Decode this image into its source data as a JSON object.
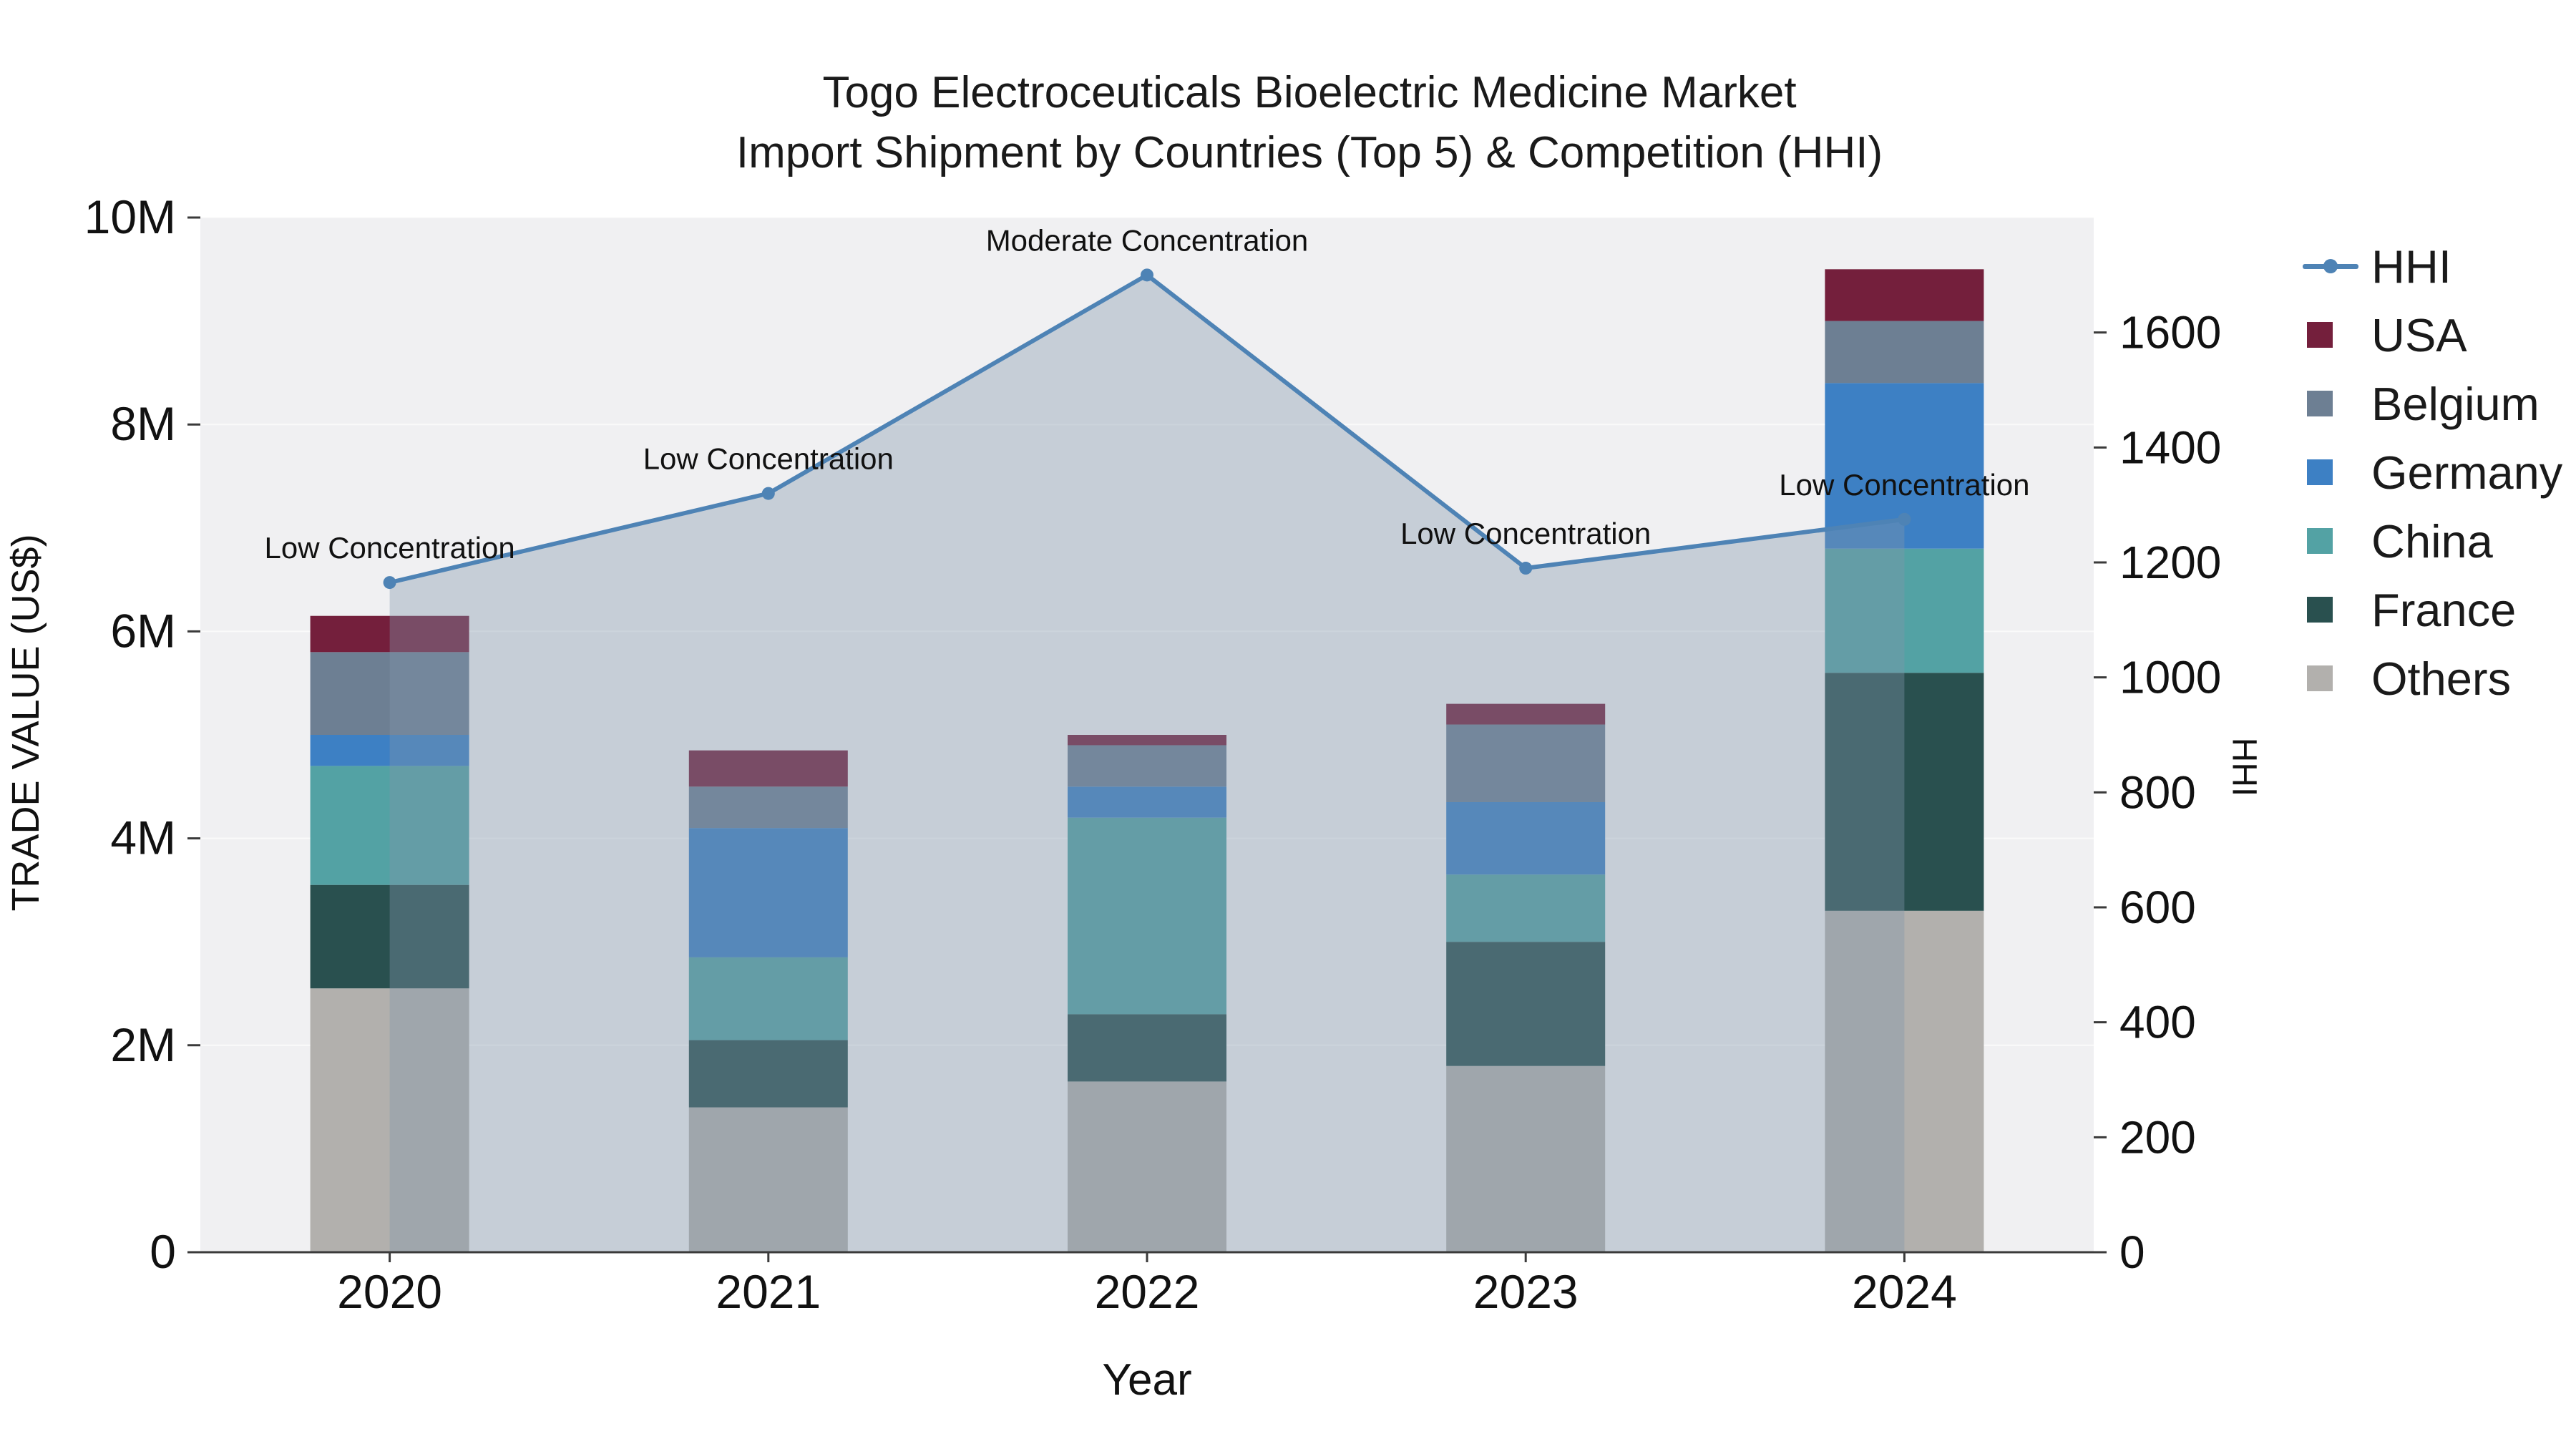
{
  "chart_data": {
    "type": "bar",
    "stacked": true,
    "title": "Togo Electroceuticals Bioelectric Medicine Market",
    "subtitle": "Import Shipment by Countries (Top 5) & Competition (HHI)",
    "xlabel": "Year",
    "ylabel_left": "TRADE VALUE (US$)",
    "ylabel_right": "HHI",
    "plot_bg": "#f0f0f2",
    "grid_color": "#fafafa",
    "axis_color": "#3a3a3a",
    "categories": [
      "2020",
      "2021",
      "2022",
      "2023",
      "2024"
    ],
    "axes": {
      "left": {
        "min": 0,
        "max": 10000000,
        "tick_values": [
          0,
          2000000,
          4000000,
          6000000,
          8000000,
          10000000
        ],
        "tick_labels": [
          "0",
          "2M",
          "4M",
          "6M",
          "8M",
          "10M"
        ]
      },
      "right": {
        "min": 0,
        "max": 1800,
        "tick_values": [
          0,
          200,
          400,
          600,
          800,
          1000,
          1200,
          1400,
          1600
        ],
        "tick_labels": [
          "0",
          "200",
          "400",
          "600",
          "800",
          "1000",
          "1200",
          "1400",
          "1600"
        ]
      }
    },
    "series": [
      {
        "name": "Others",
        "color": "#b2b0ad",
        "values": [
          2550000,
          1400000,
          1650000,
          1800000,
          3300000
        ]
      },
      {
        "name": "France",
        "color": "#29504f",
        "values": [
          1000000,
          650000,
          650000,
          1200000,
          2300000
        ]
      },
      {
        "name": "China",
        "color": "#53a2a4",
        "values": [
          1150000,
          800000,
          1900000,
          650000,
          1200000
        ]
      },
      {
        "name": "Germany",
        "color": "#3d80c4",
        "values": [
          300000,
          1250000,
          300000,
          700000,
          1600000
        ]
      },
      {
        "name": "Belgium",
        "color": "#6d7f93",
        "values": [
          800000,
          400000,
          400000,
          750000,
          600000
        ]
      },
      {
        "name": "USA",
        "color": "#741f3c",
        "values": [
          350000,
          350000,
          100000,
          200000,
          500000
        ]
      }
    ],
    "hhi": {
      "name": "HHI",
      "color": "#4e83b5",
      "area_fill": "rgba(128,149,171,0.38)",
      "values": [
        1165,
        1320,
        1700,
        1190,
        1275
      ],
      "annotations": [
        "Low Concentration",
        "Low Concentration",
        "Moderate Concentration",
        "Low Concentration",
        "Low Concentration"
      ]
    },
    "legend": [
      {
        "label": "HHI",
        "color": "#4e83b5",
        "type": "line"
      },
      {
        "label": "USA",
        "color": "#741f3c",
        "type": "square"
      },
      {
        "label": "Belgium",
        "color": "#6d7f93",
        "type": "square"
      },
      {
        "label": "Germany",
        "color": "#3d80c4",
        "type": "square"
      },
      {
        "label": "China",
        "color": "#53a2a4",
        "type": "square"
      },
      {
        "label": "France",
        "color": "#29504f",
        "type": "square"
      },
      {
        "label": "Others",
        "color": "#b2b0ad",
        "type": "square"
      }
    ]
  }
}
